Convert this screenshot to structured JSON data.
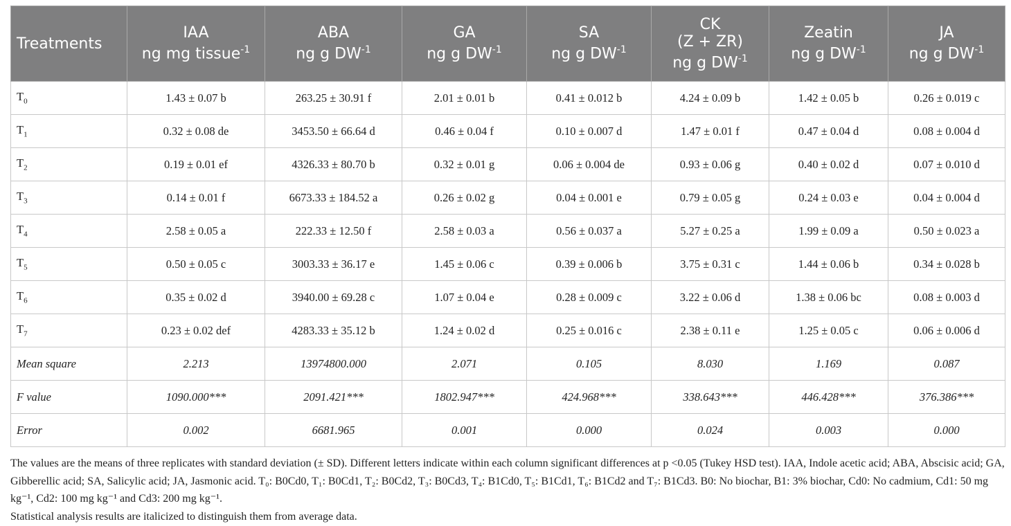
{
  "headers": [
    {
      "name": "Treatments",
      "unit": "",
      "sup": ""
    },
    {
      "name": "IAA",
      "unit": "ng mg tissue",
      "sup": "-1"
    },
    {
      "name": "ABA",
      "unit": "ng g DW",
      "sup": "-1"
    },
    {
      "name": "GA",
      "unit": "ng g DW",
      "sup": "-1"
    },
    {
      "name": "SA",
      "unit": "ng g DW",
      "sup": "-1"
    },
    {
      "name": "CK\n(Z + ZR)",
      "unit": "ng g DW",
      "sup": "-1"
    },
    {
      "name": "Zeatin",
      "unit": "ng g DW",
      "sup": "-1"
    },
    {
      "name": "JA",
      "unit": "ng g DW",
      "sup": "-1"
    }
  ],
  "rows": [
    {
      "label": "T",
      "sub": "0",
      "cells": [
        "1.43 ± 0.07 b",
        "263.25 ± 30.91 f",
        "2.01 ± 0.01 b",
        "0.41 ± 0.012 b",
        "4.24 ± 0.09 b",
        "1.42 ± 0.05 b",
        "0.26 ± 0.019 c"
      ]
    },
    {
      "label": "T",
      "sub": "1",
      "cells": [
        "0.32 ± 0.08 de",
        "3453.50 ± 66.64 d",
        "0.46 ± 0.04 f",
        "0.10 ± 0.007 d",
        "1.47 ± 0.01 f",
        "0.47 ± 0.04 d",
        "0.08 ± 0.004 d"
      ]
    },
    {
      "label": "T",
      "sub": "2",
      "cells": [
        "0.19 ± 0.01 ef",
        "4326.33 ± 80.70 b",
        "0.32 ± 0.01 g",
        "0.06 ± 0.004 de",
        "0.93 ± 0.06 g",
        "0.40 ± 0.02 d",
        "0.07 ± 0.010 d"
      ]
    },
    {
      "label": "T",
      "sub": "3",
      "cells": [
        "0.14 ± 0.01 f",
        "6673.33 ± 184.52 a",
        "0.26 ± 0.02 g",
        "0.04 ± 0.001 e",
        "0.79 ± 0.05 g",
        "0.24 ± 0.03 e",
        "0.04 ± 0.004 d"
      ]
    },
    {
      "label": "T",
      "sub": "4",
      "cells": [
        "2.58 ± 0.05 a",
        "222.33 ± 12.50 f",
        "2.58 ± 0.03 a",
        "0.56 ± 0.037 a",
        "5.27 ± 0.25 a",
        "1.99 ± 0.09 a",
        "0.50 ± 0.023 a"
      ]
    },
    {
      "label": "T",
      "sub": "5",
      "cells": [
        "0.50 ± 0.05 c",
        "3003.33 ± 36.17 e",
        "1.45 ± 0.06 c",
        "0.39 ± 0.006 b",
        "3.75 ± 0.31 c",
        "1.44 ± 0.06 b",
        "0.34 ± 0.028 b"
      ]
    },
    {
      "label": "T",
      "sub": "6",
      "cells": [
        "0.35 ± 0.02 d",
        "3940.00 ± 69.28 c",
        "1.07 ± 0.04 e",
        "0.28 ± 0.009 c",
        "3.22 ± 0.06 d",
        "1.38 ± 0.06 bc",
        "0.08 ± 0.003 d"
      ]
    },
    {
      "label": "T",
      "sub": "7",
      "cells": [
        "0.23 ± 0.02 def",
        "4283.33 ± 35.12 b",
        "1.24 ± 0.02 d",
        "0.25 ± 0.016 c",
        "2.38 ± 0.11 e",
        "1.25 ± 0.05 c",
        "0.06 ± 0.006 d"
      ]
    }
  ],
  "stats": [
    {
      "label": "Mean square",
      "cells": [
        "2.213",
        "13974800.000",
        "2.071",
        "0.105",
        "8.030",
        "1.169",
        "0.087"
      ]
    },
    {
      "label": "F value",
      "cells": [
        "1090.000***",
        "2091.421***",
        "1802.947***",
        "424.968***",
        "338.643***",
        "446.428***",
        "376.386***"
      ]
    },
    {
      "label": "Error",
      "cells": [
        "0.002",
        "6681.965",
        "0.001",
        "0.000",
        "0.024",
        "0.003",
        "0.000"
      ]
    }
  ],
  "footnote": "The values are the means of three replicates with standard deviation (± SD). Different letters indicate within each column significant differences at p <0.05 (Tukey HSD test). IAA, Indole acetic acid; ABA, Abscisic acid; GA, Gibberellic acid; SA, Salicylic acid; JA, Jasmonic acid. T₀: B0Cd0, T₁: B0Cd1, T₂: B0Cd2, T₃: B0Cd3, T₄: B1Cd0, T₅: B1Cd1, T₆: B1Cd2 and T₇: B1Cd3. B0: No biochar, B1: 3% biochar, Cd0: No cadmium, Cd1: 50 mg kg⁻¹, Cd2: 100 mg kg⁻¹ and Cd3: 200 mg kg⁻¹.",
  "footnote2": "Statistical analysis results are italicized to distinguish them from average data."
}
